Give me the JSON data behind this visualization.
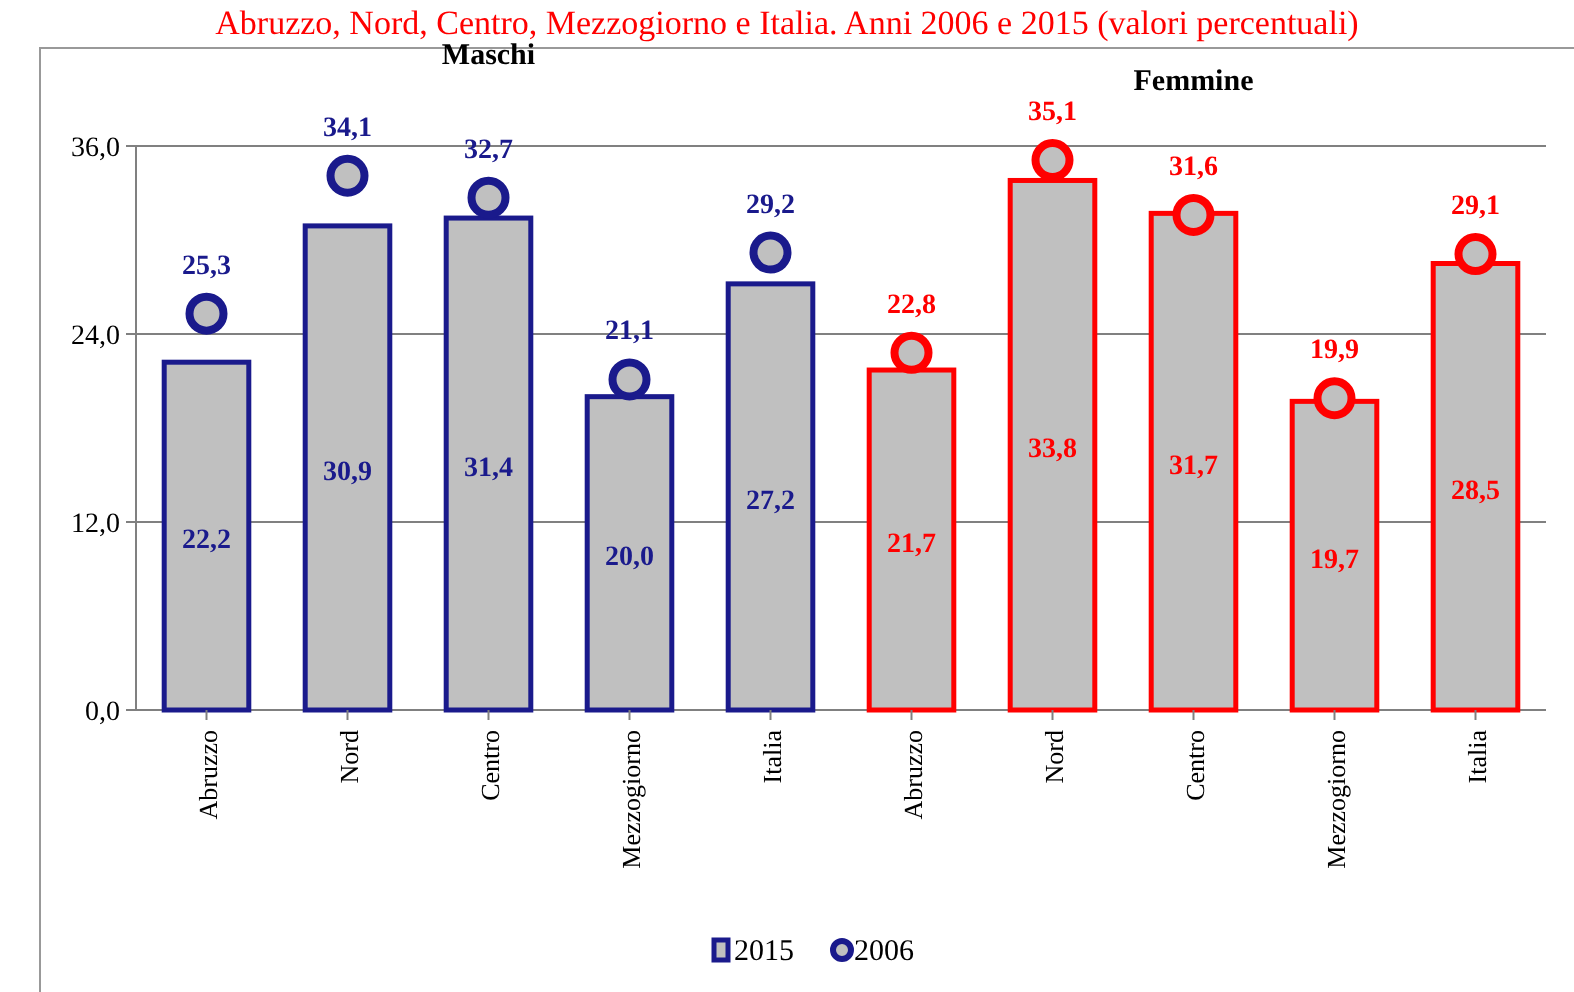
{
  "chart_data": {
    "type": "bar",
    "title": "Abruzzo, Nord, Centro, Mezzogiorno e Italia. Anni 2006 e 2015 (valori percentuali)",
    "categories": [
      "Abruzzo",
      "Nord",
      "Centro",
      "Mezzogiorno",
      "Italia",
      "Abruzzo",
      "Nord",
      "Centro",
      "Mezzogiorno",
      "Italia"
    ],
    "series": [
      {
        "name": "2015",
        "color": "#c0c0c0",
        "colors": [
          "#1a1a8c",
          "#1a1a8c",
          "#1a1a8c",
          "#1a1a8c",
          "#1a1a8c",
          "#ff0000",
          "#ff0000",
          "#ff0000",
          "#ff0000",
          "#ff0000"
        ],
        "values": [
          22.2,
          30.9,
          31.4,
          20.0,
          27.2,
          21.7,
          33.8,
          31.7,
          19.7,
          28.5
        ],
        "value_labels": [
          "22,2",
          "30,9",
          "31,4",
          "20,0",
          "27,2",
          "21,7",
          "33,8",
          "31,7",
          "19,7",
          "28,5"
        ]
      },
      {
        "name": "2006",
        "type": "scatter",
        "color": "#c0c0c0",
        "colors": [
          "#1a1a8c",
          "#1a1a8c",
          "#1a1a8c",
          "#1a1a8c",
          "#1a1a8c",
          "#ff0000",
          "#ff0000",
          "#ff0000",
          "#ff0000",
          "#ff0000"
        ],
        "values": [
          25.3,
          34.1,
          32.7,
          21.1,
          29.2,
          22.8,
          35.1,
          31.6,
          19.9,
          29.1
        ],
        "value_labels": [
          "25,3",
          "34,1",
          "32,7",
          "21,1",
          "29,2",
          "22,8",
          "35,1",
          "31,6",
          "19,9",
          "29,1"
        ]
      }
    ],
    "annotations": [
      "Maschi",
      "Femmine"
    ],
    "ylim": [
      0,
      36
    ],
    "yticks": [
      {
        "value": 0,
        "label": "0,0"
      },
      {
        "value": 12,
        "label": "12,0"
      },
      {
        "value": 24,
        "label": "24,0"
      },
      {
        "value": 36,
        "label": "36,0"
      }
    ],
    "grid": "y",
    "legend": "bottom",
    "marker": "circle"
  }
}
